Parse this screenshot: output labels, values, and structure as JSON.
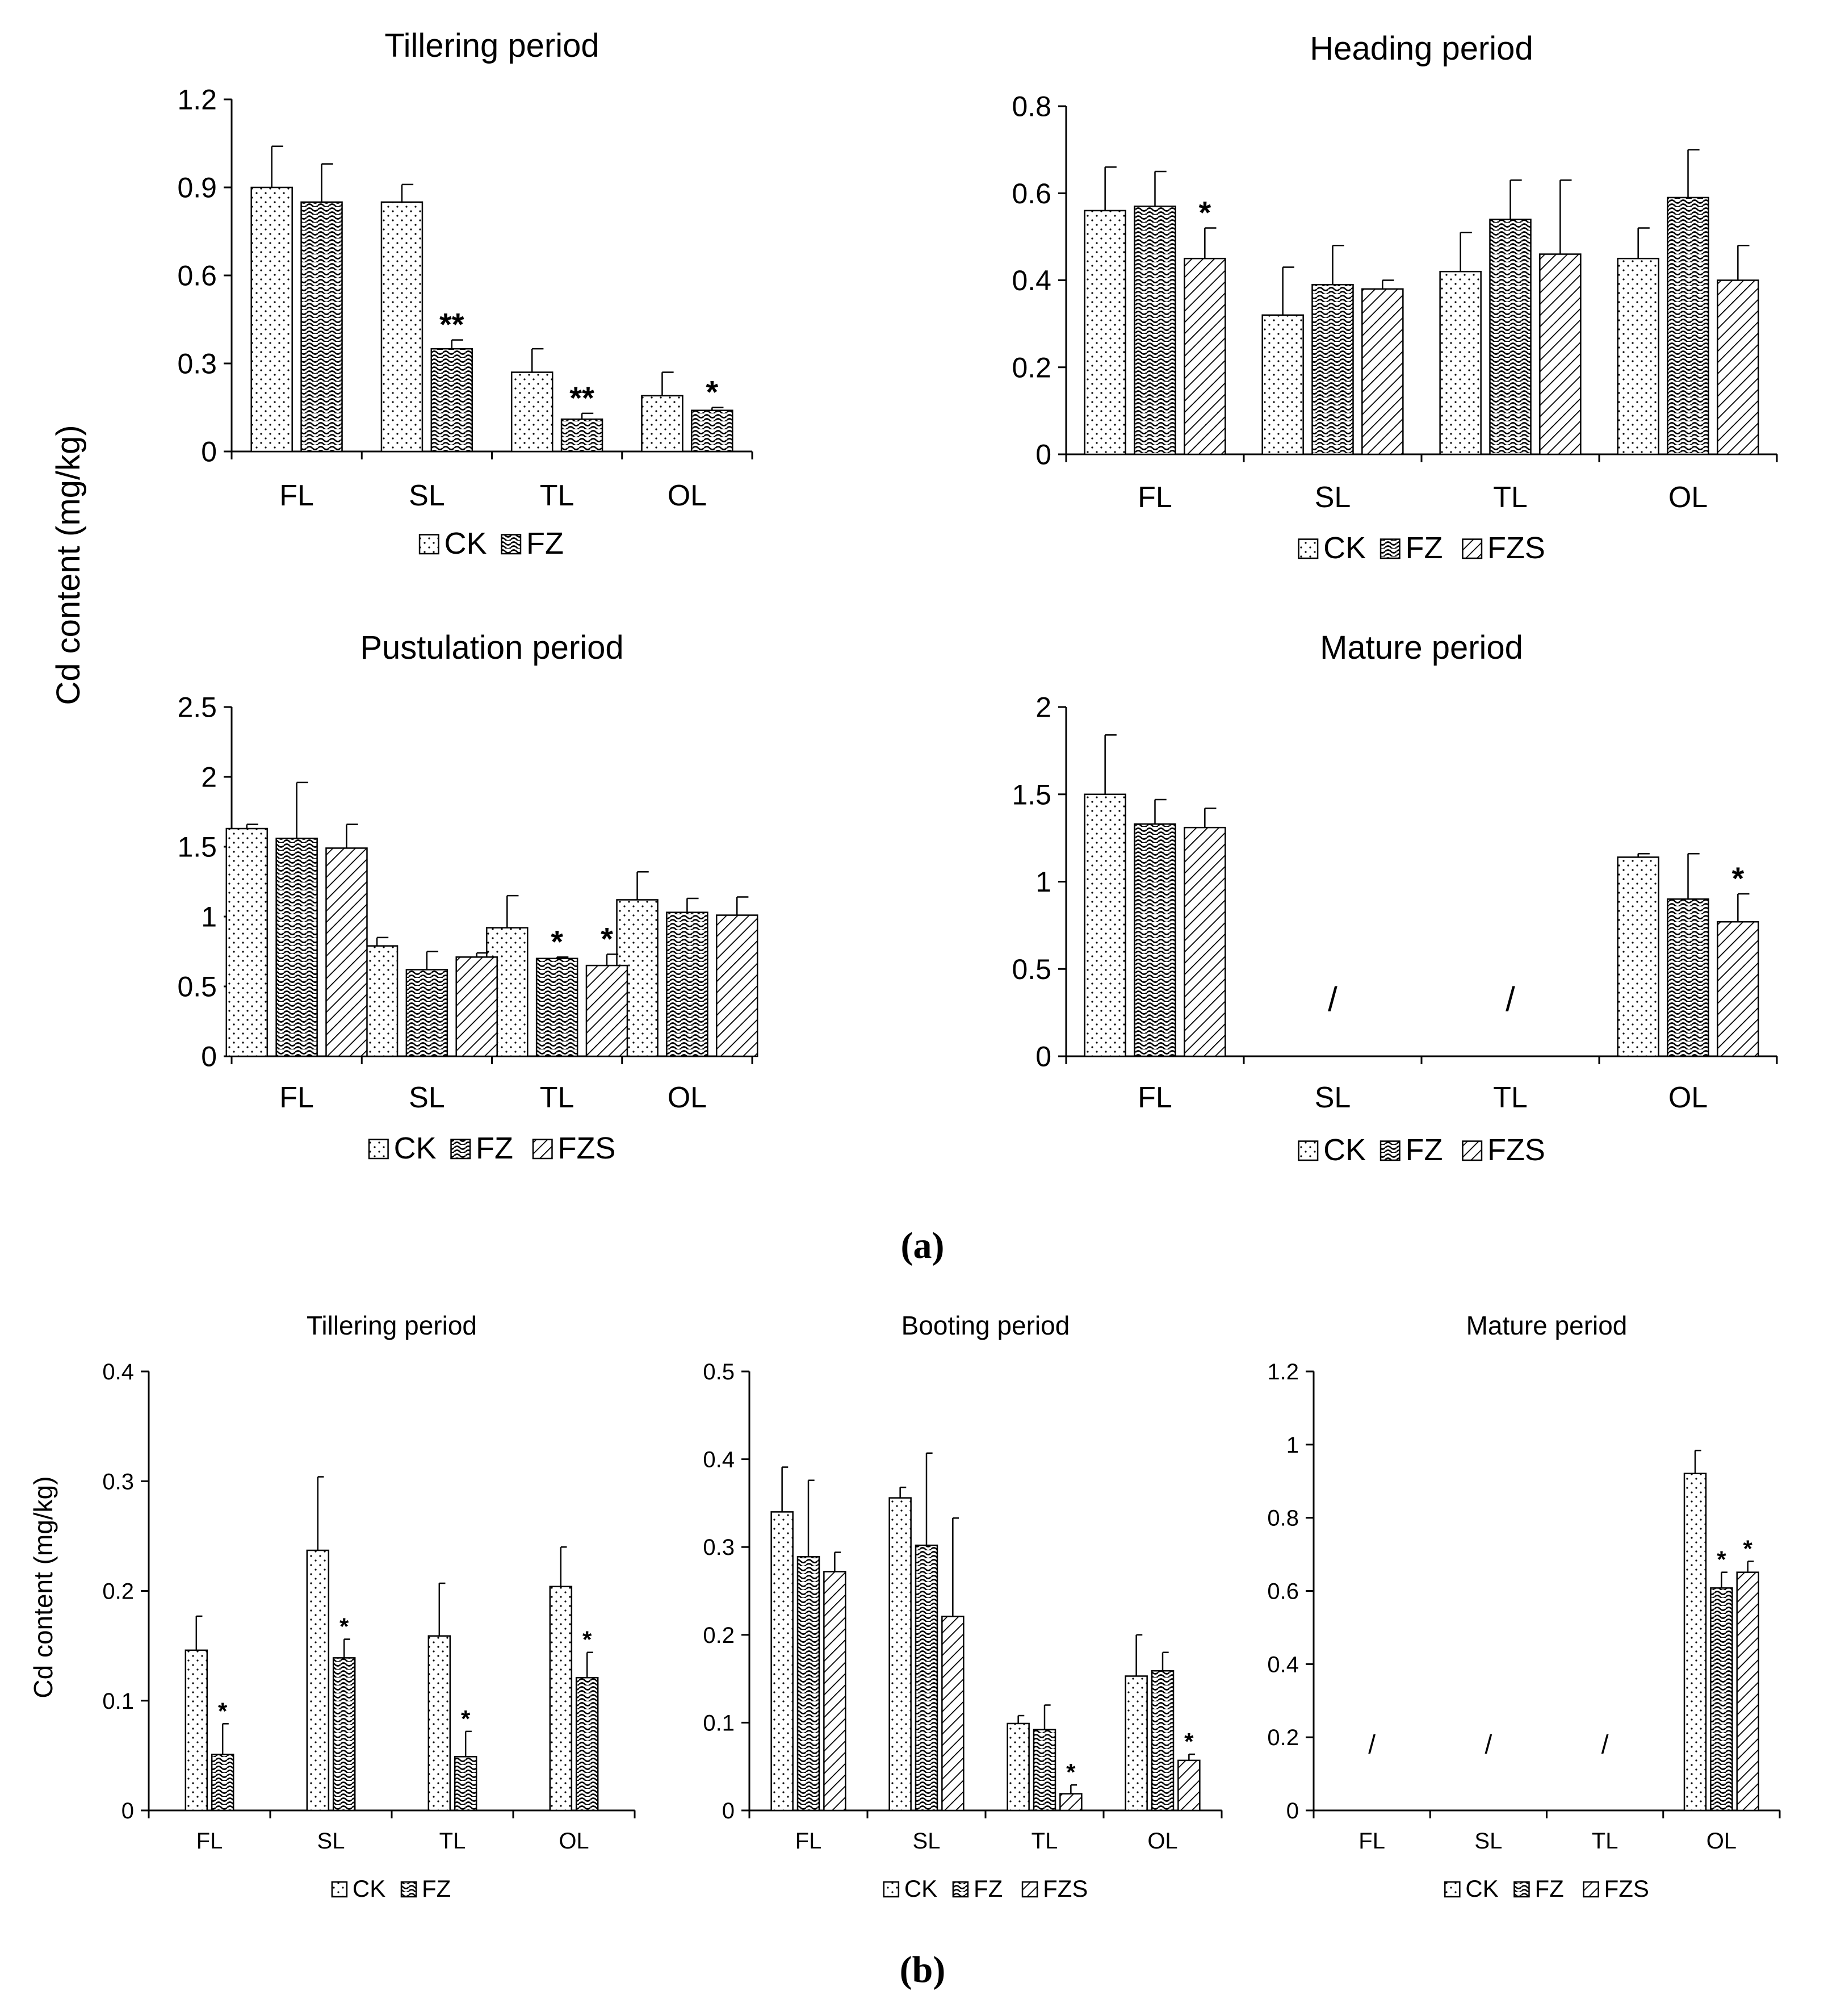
{
  "ylabel_shared": "Cd content (mg/kg)",
  "colors": {
    "bar_fill": "#ffffff",
    "bar_stroke": "#000000",
    "axis": "#000000",
    "pattern_ink": "#000000"
  },
  "panels": [
    {
      "label": "(a)",
      "label_letter": "a",
      "ylabel": "Cd content (mg/kg)"
    },
    {
      "label": "(b)",
      "label_letter": "b",
      "ylabel": "Cd content (mg/kg)"
    }
  ],
  "chart_data": [
    {
      "panel": "a",
      "type": "bar",
      "title": "Tillering period",
      "categories": [
        "FL",
        "SL",
        "TL",
        "OL"
      ],
      "ylim": [
        0,
        1.2
      ],
      "yticks": [
        "0",
        "0.3",
        "0.6",
        "0.9",
        "1.2"
      ],
      "series": [
        {
          "name": "CK",
          "pattern": "dots",
          "values": [
            0.9,
            0.85,
            0.27,
            0.19
          ],
          "errors": [
            0.14,
            0.06,
            0.08,
            0.08
          ],
          "marks": [
            "",
            "",
            "",
            ""
          ]
        },
        {
          "name": "FZ",
          "pattern": "wave",
          "values": [
            0.85,
            0.35,
            0.11,
            0.14
          ],
          "errors": [
            0.13,
            0.03,
            0.02,
            0.01
          ],
          "marks": [
            "",
            "**",
            "**",
            "*"
          ]
        }
      ],
      "legend": [
        "CK",
        "FZ"
      ],
      "omitted": []
    },
    {
      "panel": "a",
      "type": "bar",
      "title": "Heading period",
      "categories": [
        "FL",
        "SL",
        "TL",
        "OL"
      ],
      "ylim": [
        0,
        0.8
      ],
      "yticks": [
        "0",
        "0.2",
        "0.4",
        "0.6",
        "0.8"
      ],
      "series": [
        {
          "name": "CK",
          "pattern": "dots",
          "values": [
            0.56,
            0.32,
            0.42,
            0.45
          ],
          "errors": [
            0.1,
            0.11,
            0.09,
            0.07
          ],
          "marks": [
            "",
            "",
            "",
            ""
          ]
        },
        {
          "name": "FZ",
          "pattern": "wave",
          "values": [
            0.57,
            0.39,
            0.54,
            0.59
          ],
          "errors": [
            0.08,
            0.09,
            0.09,
            0.11
          ],
          "marks": [
            "",
            "",
            "",
            ""
          ]
        },
        {
          "name": "FZS",
          "pattern": "diag",
          "values": [
            0.45,
            0.38,
            0.46,
            0.4
          ],
          "errors": [
            0.07,
            0.02,
            0.17,
            0.08
          ],
          "marks": [
            "*",
            "",
            "",
            ""
          ]
        }
      ],
      "legend": [
        "CK",
        "FZ",
        "FZS"
      ],
      "omitted": []
    },
    {
      "panel": "a",
      "type": "bar",
      "title": "Pustulation period",
      "categories": [
        "FL",
        "SL",
        "TL",
        "OL"
      ],
      "ylim": [
        0,
        2.5
      ],
      "yticks": [
        "0",
        "0.5",
        "1",
        "1.5",
        "2",
        "2.5"
      ],
      "series": [
        {
          "name": "CK",
          "pattern": "dots",
          "values": [
            1.63,
            0.79,
            0.92,
            1.12
          ],
          "errors": [
            0.03,
            0.06,
            0.23,
            0.2
          ],
          "marks": [
            "",
            "",
            "",
            ""
          ]
        },
        {
          "name": "FZ",
          "pattern": "wave",
          "values": [
            1.56,
            0.62,
            0.7,
            1.03
          ],
          "errors": [
            0.4,
            0.13,
            0.01,
            0.1
          ],
          "marks": [
            "",
            "",
            "*",
            ""
          ]
        },
        {
          "name": "FZS",
          "pattern": "diag",
          "values": [
            1.49,
            0.71,
            0.65,
            1.01
          ],
          "errors": [
            0.17,
            0.03,
            0.08,
            0.13
          ],
          "marks": [
            "",
            "",
            "*",
            ""
          ]
        }
      ],
      "legend": [
        "CK",
        "FZ",
        "FZS"
      ],
      "omitted": []
    },
    {
      "panel": "a",
      "type": "bar",
      "title": "Mature period",
      "categories": [
        "FL",
        "SL",
        "TL",
        "OL"
      ],
      "ylim": [
        0,
        2
      ],
      "yticks": [
        "0",
        "0.5",
        "1",
        "1.5",
        "2"
      ],
      "series": [
        {
          "name": "CK",
          "pattern": "dots",
          "values": [
            1.5,
            null,
            null,
            1.14
          ],
          "errors": [
            0.34,
            null,
            null,
            0.02
          ],
          "marks": [
            "",
            "",
            "",
            ""
          ]
        },
        {
          "name": "FZ",
          "pattern": "wave",
          "values": [
            1.33,
            null,
            null,
            0.9
          ],
          "errors": [
            0.14,
            null,
            null,
            0.26
          ],
          "marks": [
            "",
            "",
            "",
            ""
          ]
        },
        {
          "name": "FZS",
          "pattern": "diag",
          "values": [
            1.31,
            null,
            null,
            0.77
          ],
          "errors": [
            0.11,
            null,
            null,
            0.16
          ],
          "marks": [
            "",
            "",
            "",
            "*"
          ]
        }
      ],
      "legend": [
        "CK",
        "FZ",
        "FZS"
      ],
      "omitted": [
        {
          "category": "SL",
          "text": "/"
        },
        {
          "category": "TL",
          "text": "/"
        }
      ]
    },
    {
      "panel": "b",
      "type": "bar",
      "title": "Tillering period",
      "categories": [
        "FL",
        "SL",
        "TL",
        "OL"
      ],
      "ylim": [
        0,
        0.4
      ],
      "yticks": [
        "0",
        "0.1",
        "0.2",
        "0.3",
        "0.4"
      ],
      "series": [
        {
          "name": "CK",
          "pattern": "dots",
          "values": [
            0.146,
            0.237,
            0.159,
            0.204
          ],
          "errors": [
            0.031,
            0.067,
            0.048,
            0.036
          ],
          "marks": [
            "",
            "",
            "",
            ""
          ]
        },
        {
          "name": "FZ",
          "pattern": "wave",
          "values": [
            0.051,
            0.139,
            0.049,
            0.121
          ],
          "errors": [
            0.028,
            0.017,
            0.023,
            0.023
          ],
          "marks": [
            "*",
            "*",
            "*",
            "*"
          ]
        }
      ],
      "legend": [
        "CK",
        "FZ"
      ],
      "omitted": []
    },
    {
      "panel": "b",
      "type": "bar",
      "title": "Booting period",
      "categories": [
        "FL",
        "SL",
        "TL",
        "OL"
      ],
      "ylim": [
        0,
        0.5
      ],
      "yticks": [
        "0",
        "0.1",
        "0.2",
        "0.3",
        "0.4",
        "0.5"
      ],
      "series": [
        {
          "name": "CK",
          "pattern": "dots",
          "values": [
            0.34,
            0.356,
            0.099,
            0.153
          ],
          "errors": [
            0.051,
            0.012,
            0.009,
            0.047
          ],
          "marks": [
            "",
            "",
            "",
            ""
          ]
        },
        {
          "name": "FZ",
          "pattern": "wave",
          "values": [
            0.289,
            0.302,
            0.092,
            0.159
          ],
          "errors": [
            0.087,
            0.105,
            0.028,
            0.021
          ],
          "marks": [
            "",
            "",
            "",
            ""
          ]
        },
        {
          "name": "FZS",
          "pattern": "diag",
          "values": [
            0.272,
            0.221,
            0.019,
            0.057
          ],
          "errors": [
            0.022,
            0.112,
            0.01,
            0.007
          ],
          "marks": [
            "",
            "",
            "*",
            "*"
          ]
        }
      ],
      "legend": [
        "CK",
        "FZ",
        "FZS"
      ],
      "omitted": []
    },
    {
      "panel": "b",
      "type": "bar",
      "title": "Mature period",
      "categories": [
        "FL",
        "SL",
        "TL",
        "OL"
      ],
      "ylim": [
        0,
        1.2
      ],
      "yticks": [
        "0",
        "0.2",
        "0.4",
        "0.6",
        "0.8",
        "1",
        "1.2"
      ],
      "series": [
        {
          "name": "CK",
          "pattern": "dots",
          "values": [
            null,
            null,
            null,
            0.921
          ],
          "errors": [
            null,
            null,
            null,
            0.063
          ],
          "marks": [
            "",
            "",
            "",
            ""
          ]
        },
        {
          "name": "FZ",
          "pattern": "wave",
          "values": [
            null,
            null,
            null,
            0.608
          ],
          "errors": [
            null,
            null,
            null,
            0.043
          ],
          "marks": [
            "",
            "",
            "",
            "*"
          ]
        },
        {
          "name": "FZS",
          "pattern": "diag",
          "values": [
            null,
            null,
            null,
            0.651
          ],
          "errors": [
            null,
            null,
            null,
            0.03
          ],
          "marks": [
            "",
            "",
            "",
            "*"
          ]
        }
      ],
      "legend": [
        "CK",
        "FZ",
        "FZS"
      ],
      "omitted": [
        {
          "category": "FL",
          "text": "/"
        },
        {
          "category": "SL",
          "text": "/"
        },
        {
          "category": "TL",
          "text": "/"
        }
      ]
    }
  ]
}
